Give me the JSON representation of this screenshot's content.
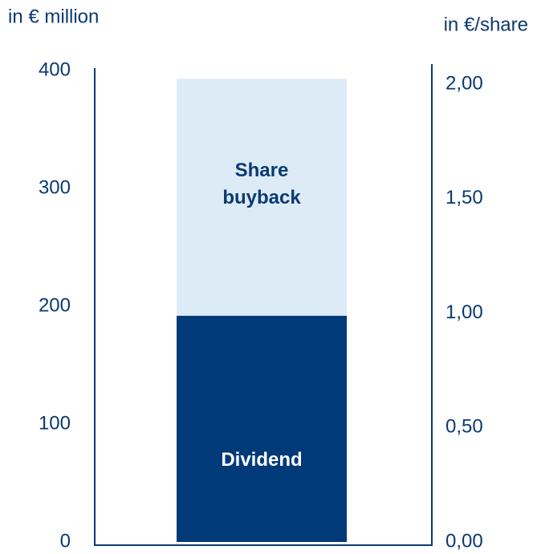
{
  "chart_data": {
    "type": "stacked_bar",
    "categories": [
      null
    ],
    "series": [
      {
        "name": "Dividend",
        "color": "#003a78",
        "values": [
          192
        ]
      },
      {
        "name": "Share buyback",
        "color": "#ddebf7",
        "values": [
          201
        ]
      }
    ],
    "y_label": "in € million",
    "y2_label": "in €/share",
    "ylim": [
      0,
      400
    ],
    "yticks": [
      0,
      100,
      200,
      300,
      400
    ],
    "y2lim": [
      0,
      2.06
    ],
    "y2ticks": [
      {
        "value": 0,
        "label": "0,00"
      },
      {
        "value": 0.5,
        "label": "0,50"
      },
      {
        "value": 1,
        "label": "1,00"
      },
      {
        "value": 1.5,
        "label": "1,50"
      },
      {
        "value": 2,
        "label": "2,00"
      }
    ],
    "grid": false
  }
}
